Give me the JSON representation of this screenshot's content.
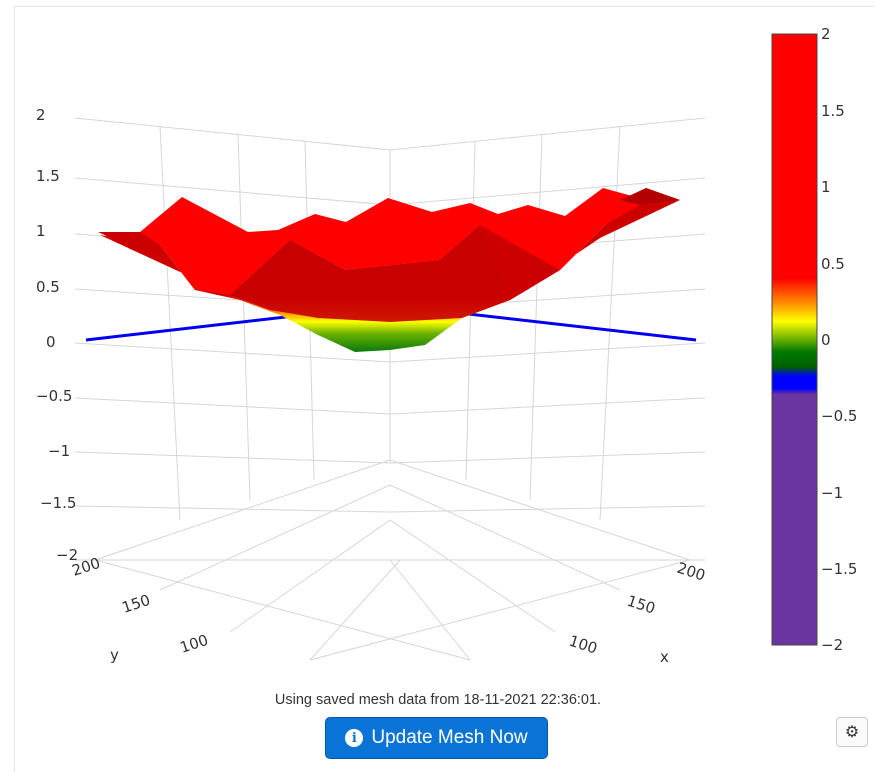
{
  "chart_data": {
    "type": "surface",
    "z_axis": {
      "ticks": [
        "2",
        "1.5",
        "1",
        "0.5",
        "0",
        "−0.5",
        "−1",
        "−1.5",
        "−2"
      ],
      "range": [
        -2,
        2
      ]
    },
    "y_axis": {
      "title": "y",
      "ticks": [
        "200",
        "150",
        "100"
      ]
    },
    "x_axis": {
      "title": "x",
      "ticks": [
        "200",
        "150",
        "100"
      ]
    },
    "surface": {
      "min_z": -0.2,
      "max_z": 1.2,
      "shape": "bowl"
    },
    "reference_plane_z": 0,
    "reference_line_color": "#0000ee",
    "colorbar": {
      "ticks": [
        "2",
        "1.5",
        "1",
        "0.5",
        "0",
        "−0.5",
        "−1",
        "−1.5",
        "−2"
      ],
      "range": [
        -2,
        2
      ],
      "colorscale": [
        [
          -2,
          "#6a35a0"
        ],
        [
          -0.35,
          "#6a35a0"
        ],
        [
          -0.25,
          "#0000ff"
        ],
        [
          -0.1,
          "#0000ff"
        ],
        [
          0,
          "#007a00"
        ],
        [
          0.15,
          "#ffff00"
        ],
        [
          0.3,
          "#ff6600"
        ],
        [
          0.4,
          "#ff0000"
        ],
        [
          2,
          "#ff0000"
        ]
      ]
    }
  },
  "status": {
    "text": "Using saved mesh data from 18-11-2021 22:36:01."
  },
  "update_button": {
    "label": "Update Mesh Now",
    "icon": "info-circle-icon"
  },
  "settings_button": {
    "icon": "gear-icon",
    "glyph": "⚙"
  },
  "colors": {
    "primary_button": "#0a74d6",
    "surface_top": "#ff0000",
    "surface_side": "#cc0000",
    "surface_bottom": "#008000"
  }
}
